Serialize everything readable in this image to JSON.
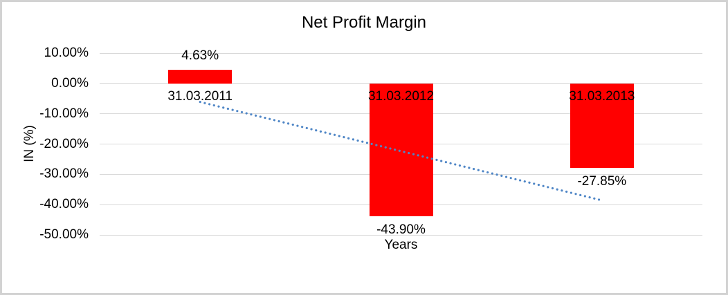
{
  "chart_data": {
    "type": "bar",
    "title": "Net Profit Margin",
    "xlabel": "Years",
    "ylabel": "IN (%)",
    "categories": [
      "31.03.2011",
      "31.03.2012",
      "31.03.2013"
    ],
    "values": [
      4.63,
      -43.9,
      -27.85
    ],
    "data_labels": [
      "4.63%",
      "-43.90%",
      "-27.85%"
    ],
    "y_ticks": [
      {
        "value": 10,
        "label": "10.00%"
      },
      {
        "value": 0,
        "label": "0.00%"
      },
      {
        "value": -10,
        "label": "-10.00%"
      },
      {
        "value": -20,
        "label": "-20.00%"
      },
      {
        "value": -30,
        "label": "-30.00%"
      },
      {
        "value": -40,
        "label": "-40.00%"
      },
      {
        "value": -50,
        "label": "-50.00%"
      }
    ],
    "ylim": [
      -50,
      10
    ],
    "grid": true,
    "legend": "none",
    "colors": {
      "bar": "#ff0000",
      "trendline": "#4f86c6",
      "gridline": "#d9d9d9",
      "text": "#000000",
      "border": "#d2d2d2"
    },
    "trendline": {
      "style": "dotted",
      "start_value": -6.1,
      "end_value": -38.6
    }
  }
}
